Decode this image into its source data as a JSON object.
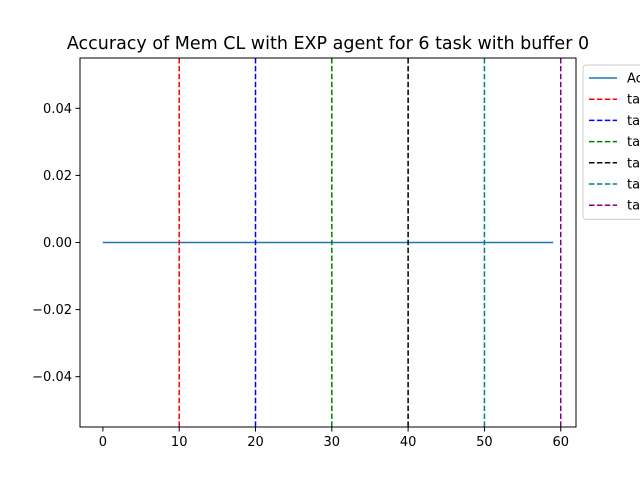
{
  "chart_data": {
    "type": "line",
    "title": "Accuracy of Mem CL with EXP agent for 6 task with buffer 0",
    "xlabel": "",
    "ylabel": "",
    "xlim": [
      -3,
      62
    ],
    "ylim": [
      -0.055,
      0.055
    ],
    "xticks": [
      0,
      10,
      20,
      30,
      40,
      50,
      60
    ],
    "xtick_labels": [
      "0",
      "10",
      "20",
      "30",
      "40",
      "50",
      "60"
    ],
    "yticks": [
      -0.04,
      -0.02,
      0.0,
      0.02,
      0.04
    ],
    "ytick_labels": [
      "−0.04",
      "−0.02",
      "0.00",
      "0.02",
      "0.04"
    ],
    "grid": false,
    "legend_position": "outside-top-right",
    "series": [
      {
        "name": "Ac",
        "color": "#1f77b4",
        "style": "solid",
        "x": [
          0,
          59
        ],
        "y": [
          0.0,
          0.0
        ]
      }
    ],
    "vlines": [
      {
        "name": "ta",
        "x": 10,
        "color": "#ff0000",
        "style": "dashed"
      },
      {
        "name": "ta",
        "x": 20,
        "color": "#0000ff",
        "style": "dashed"
      },
      {
        "name": "ta",
        "x": 30,
        "color": "#008000",
        "style": "dashed"
      },
      {
        "name": "ta",
        "x": 40,
        "color": "#000000",
        "style": "dashed"
      },
      {
        "name": "ta",
        "x": 50,
        "color": "#008080",
        "style": "dashed"
      },
      {
        "name": "ta",
        "x": 60,
        "color": "#800080",
        "style": "dashed"
      }
    ]
  }
}
